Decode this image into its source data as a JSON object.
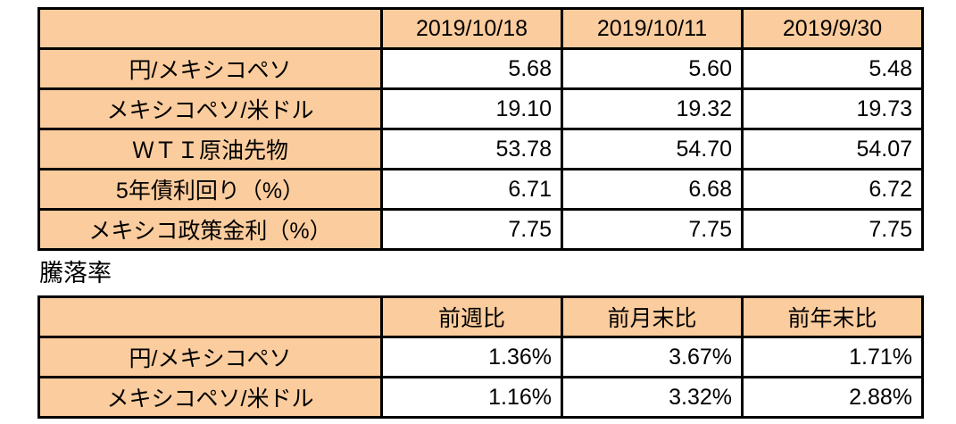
{
  "colors": {
    "header_fill": "#FBCC9D",
    "border": "#000000",
    "text": "#000000",
    "background": "#FFFFFF"
  },
  "section_label": "騰落率",
  "chart_data": [
    {
      "type": "table",
      "title": "",
      "columns": [
        "",
        "2019/10/18",
        "2019/10/11",
        "2019/9/30"
      ],
      "rows": [
        [
          "円/メキシコペソ",
          "5.68",
          "5.60",
          "5.48"
        ],
        [
          "メキシコペソ/米ドル",
          "19.10",
          "19.32",
          "19.73"
        ],
        [
          "ＷＴＩ原油先物",
          "53.78",
          "54.70",
          "54.07"
        ],
        [
          "5年債利回り（%）",
          "6.71",
          "6.68",
          "6.72"
        ],
        [
          "メキシコ政策金利（%）",
          "7.75",
          "7.75",
          "7.75"
        ]
      ],
      "layout": {
        "grid": true,
        "header_row_fill": "#FBCC9D",
        "label_column_fill": "#FBCC9D"
      }
    },
    {
      "type": "table",
      "title": "騰落率",
      "columns": [
        "",
        "前週比",
        "前月末比",
        "前年末比"
      ],
      "rows": [
        [
          "円/メキシコペソ",
          "1.36%",
          "3.67%",
          "1.71%"
        ],
        [
          "メキシコペソ/米ドル",
          "1.16%",
          "3.32%",
          "2.88%"
        ]
      ],
      "layout": {
        "grid": true,
        "header_row_fill": "#FBCC9D",
        "label_column_fill": "#FBCC9D"
      }
    }
  ]
}
